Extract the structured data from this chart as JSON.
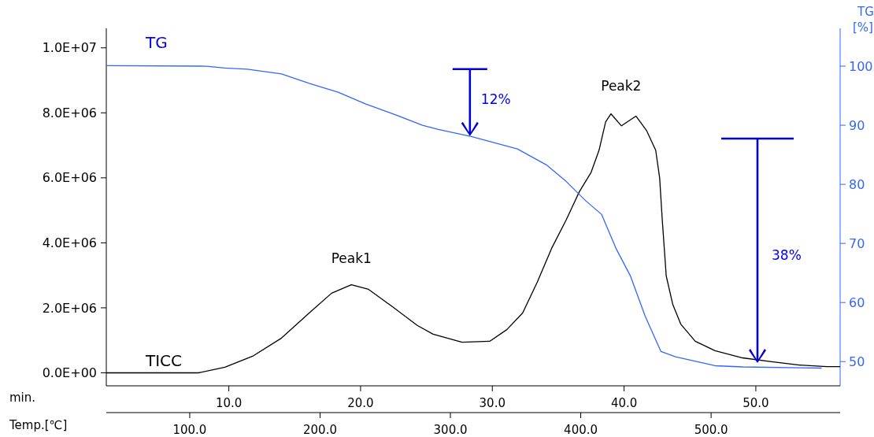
{
  "chart_data": {
    "type": "line",
    "xlabel": "min.",
    "x2label": "Temp.[℃]",
    "y2label": "TG [%]",
    "xlim": [
      0.7,
      56.4
    ],
    "x2lim": [
      36,
      599
    ],
    "xticks": [
      {
        "value": 10,
        "label": "10.0"
      },
      {
        "value": 20,
        "label": "20.0"
      },
      {
        "value": 30,
        "label": "30.0"
      },
      {
        "value": 40,
        "label": "40.0"
      },
      {
        "value": 50,
        "label": "50.0"
      }
    ],
    "x2ticks": [
      {
        "value": 100,
        "label": "100.0"
      },
      {
        "value": 200,
        "label": "200.0"
      },
      {
        "value": 300,
        "label": "300.0"
      },
      {
        "value": 400,
        "label": "400.0"
      },
      {
        "value": 500,
        "label": "500.0"
      }
    ],
    "ylim": [
      -400000,
      10600000
    ],
    "yticks": [
      {
        "value": 0,
        "label": "0.0E+00"
      },
      {
        "value": 2000000,
        "label": "2.0E+06"
      },
      {
        "value": 4000000,
        "label": "4.0E+06"
      },
      {
        "value": 6000000,
        "label": "6.0E+06"
      },
      {
        "value": 8000000,
        "label": "8.0E+06"
      },
      {
        "value": 10000000,
        "label": "1.0E+07"
      }
    ],
    "y2lim": [
      45.9,
      106.4
    ],
    "y2ticks": [
      50,
      60,
      70,
      80,
      90,
      100
    ],
    "series": [
      {
        "name": "TICC",
        "color": "#000000",
        "x": [
          0.7,
          7.7,
          9.7,
          11.8,
          14.0,
          16.1,
          17.8,
          19.3,
          20.6,
          22.5,
          24.3,
          25.5,
          27.7,
          29.8,
          31.1,
          32.3,
          33.4,
          34.5,
          35.6,
          36.6,
          37.5,
          38.1,
          38.6,
          39.0,
          39.8,
          40.9,
          41.7,
          42.4,
          42.7,
          42.9,
          43.2,
          43.7,
          44.3,
          45.4,
          46.9,
          49.0,
          51.2,
          53.3,
          55.4,
          56.4
        ],
        "values": [
          0,
          0,
          170000,
          510000,
          1070000,
          1840000,
          2450000,
          2710000,
          2570000,
          2010000,
          1460000,
          1190000,
          940000,
          970000,
          1330000,
          1840000,
          2780000,
          3830000,
          4700000,
          5570000,
          6170000,
          6850000,
          7720000,
          7970000,
          7600000,
          7900000,
          7460000,
          6850000,
          6000000,
          4700000,
          2980000,
          2100000,
          1500000,
          970000,
          680000,
          460000,
          340000,
          240000,
          190000,
          190000
        ]
      },
      {
        "name": "TG",
        "color": "#3366ff",
        "axis": "y2",
        "x": [
          0.7,
          8.3,
          9.7,
          11.4,
          14.0,
          16.1,
          18.3,
          20.4,
          22.5,
          24.7,
          25.9,
          28.4,
          31.9,
          34.1,
          35.6,
          37.1,
          38.3,
          39.4,
          40.5,
          41.6,
          42.8,
          43.9,
          46.9,
          49.0,
          55.0
        ],
        "values": [
          100.1,
          100,
          99.7,
          99.5,
          98.7,
          97.1,
          95.6,
          93.6,
          91.9,
          90.0,
          89.3,
          88.1,
          86.0,
          83.3,
          80.5,
          77.2,
          74.9,
          69.1,
          64.4,
          57.7,
          51.7,
          50.8,
          49.3,
          49.1,
          48.9
        ]
      }
    ],
    "annotations": [
      {
        "text": "Peak1",
        "x": 19.3,
        "y": 2710000
      },
      {
        "text": "Peak2",
        "x": 39.0,
        "y": 7970000
      },
      {
        "text": "12%",
        "x": 28.3,
        "y": 7310000
      },
      "38%"
    ],
    "grid": false
  }
}
